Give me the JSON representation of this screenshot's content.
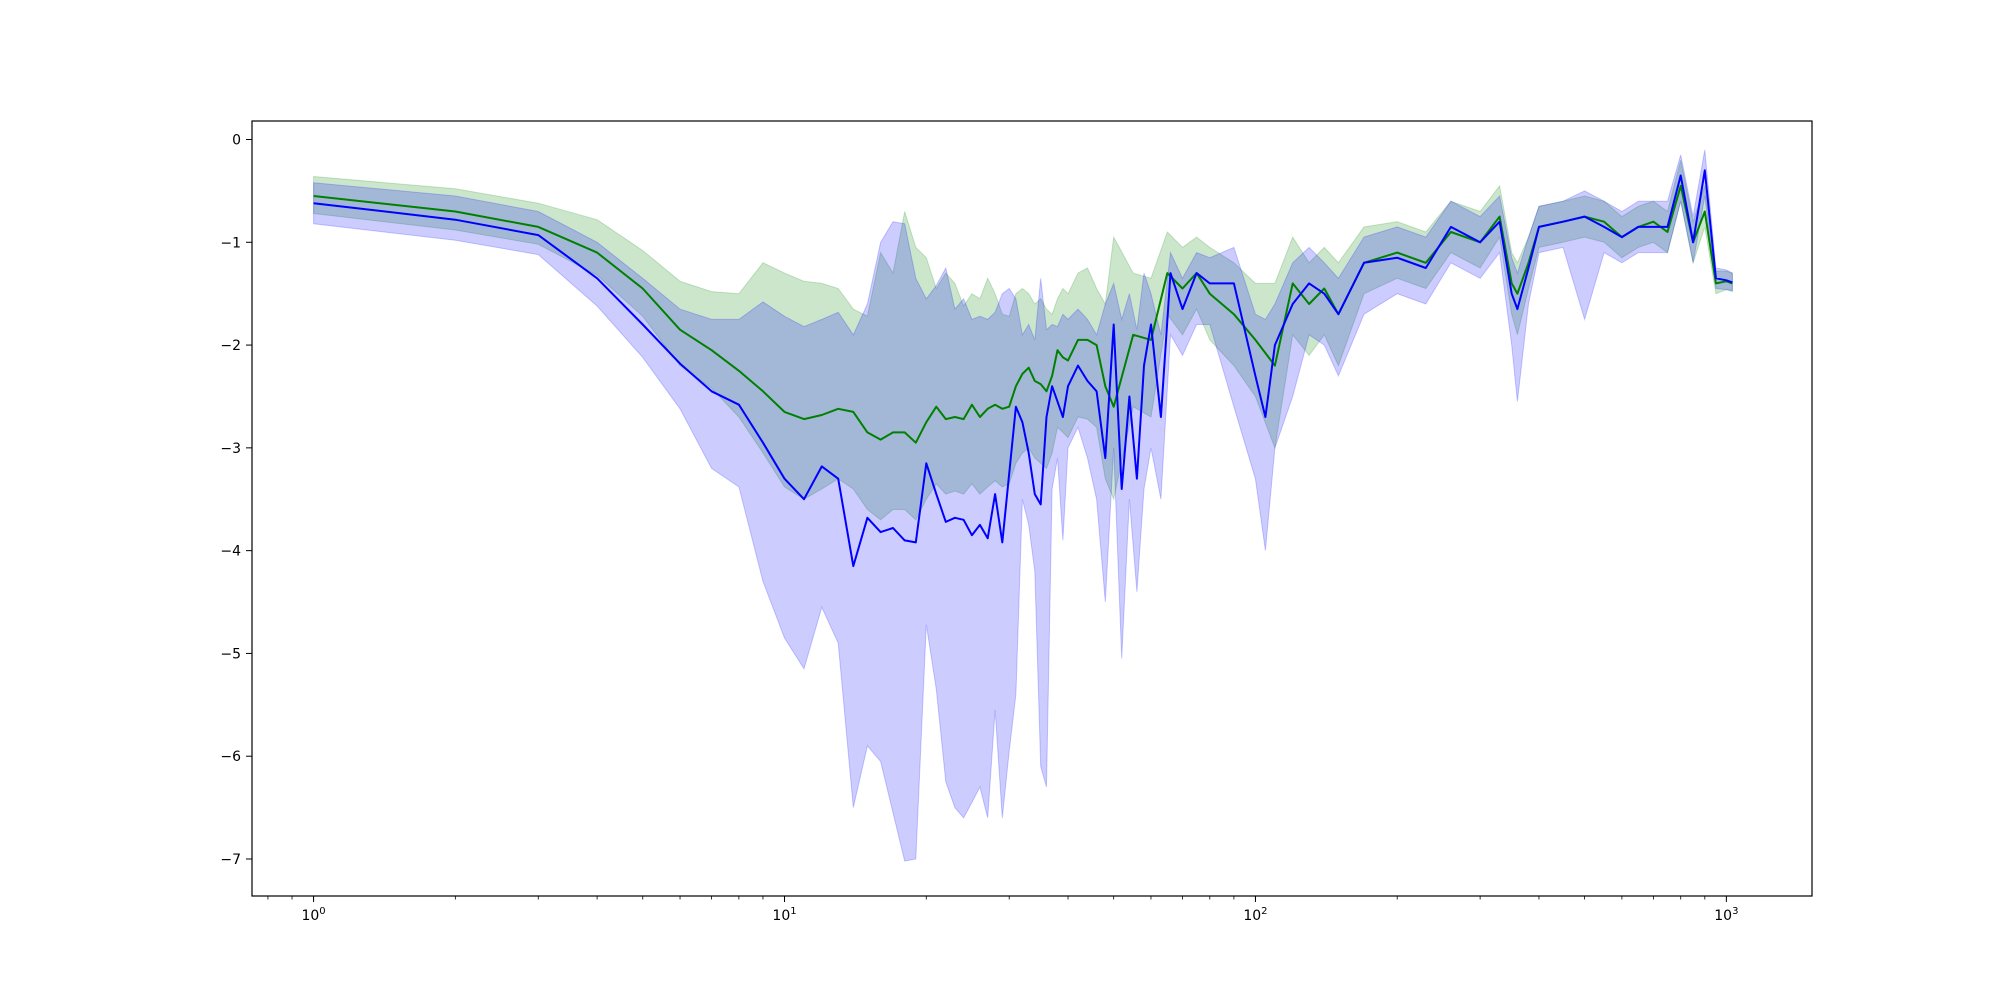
{
  "chart_data": {
    "type": "line",
    "title": "",
    "xlabel": "",
    "ylabel": "",
    "x_scale": "log",
    "xlim": [
      0.74,
      1520
    ],
    "ylim": [
      -7.36,
      0.18
    ],
    "grid": false,
    "legend": "none",
    "x_ticks": [
      {
        "value": 1,
        "base": "10",
        "exp": "0"
      },
      {
        "value": 10,
        "base": "10",
        "exp": "1"
      },
      {
        "value": 100,
        "base": "10",
        "exp": "2"
      },
      {
        "value": 1000,
        "base": "10",
        "exp": "3"
      }
    ],
    "y_ticks": [
      {
        "value": 0,
        "label": "0"
      },
      {
        "value": -1,
        "label": "−1"
      },
      {
        "value": -2,
        "label": "−2"
      },
      {
        "value": -3,
        "label": "−3"
      },
      {
        "value": -4,
        "label": "−4"
      },
      {
        "value": -5,
        "label": "−5"
      },
      {
        "value": -6,
        "label": "−6"
      },
      {
        "value": -7,
        "label": "−7"
      }
    ],
    "series": [
      {
        "color": "#008000",
        "band_color": "#008000",
        "band_opacity": 0.2,
        "x": [
          1,
          2,
          3,
          4,
          5,
          6,
          7,
          8,
          9,
          10,
          11,
          12,
          13,
          14,
          15,
          16,
          17,
          18,
          19,
          20,
          21,
          22,
          23,
          24,
          25,
          26,
          27,
          28,
          29,
          30,
          31,
          32,
          33,
          34,
          35,
          36,
          37,
          38,
          39,
          40,
          42,
          44,
          46,
          48,
          50,
          55,
          60,
          65,
          70,
          75,
          80,
          90,
          100,
          110,
          120,
          130,
          140,
          150,
          170,
          200,
          230,
          260,
          300,
          330,
          350,
          360,
          380,
          400,
          450,
          500,
          550,
          600,
          650,
          700,
          750,
          800,
          850,
          900,
          950,
          1000,
          1030
        ],
        "mean": [
          -0.55,
          -0.7,
          -0.85,
          -1.1,
          -1.45,
          -1.85,
          -2.05,
          -2.25,
          -2.45,
          -2.65,
          -2.72,
          -2.68,
          -2.62,
          -2.65,
          -2.85,
          -2.92,
          -2.85,
          -2.85,
          -2.95,
          -2.75,
          -2.6,
          -2.72,
          -2.7,
          -2.72,
          -2.58,
          -2.7,
          -2.62,
          -2.58,
          -2.62,
          -2.6,
          -2.4,
          -2.28,
          -2.22,
          -2.35,
          -2.38,
          -2.45,
          -2.3,
          -2.05,
          -2.12,
          -2.15,
          -1.95,
          -1.95,
          -2.0,
          -2.4,
          -2.6,
          -1.9,
          -1.95,
          -1.3,
          -1.45,
          -1.3,
          -1.5,
          -1.7,
          -1.95,
          -2.2,
          -1.4,
          -1.6,
          -1.45,
          -1.7,
          -1.2,
          -1.1,
          -1.2,
          -0.9,
          -1.0,
          -0.75,
          -1.4,
          -1.5,
          -1.2,
          -0.85,
          -0.8,
          -0.75,
          -0.8,
          -0.95,
          -0.85,
          -0.8,
          -0.9,
          -0.45,
          -1.0,
          -0.7,
          -1.4,
          -1.38,
          -1.4
        ],
        "lower": [
          -0.72,
          -0.88,
          -1.02,
          -1.32,
          -1.72,
          -2.2,
          -2.42,
          -2.7,
          -3.05,
          -3.38,
          -3.5,
          -3.4,
          -3.3,
          -3.4,
          -3.6,
          -3.7,
          -3.6,
          -3.6,
          -3.7,
          -3.5,
          -3.35,
          -3.45,
          -3.42,
          -3.45,
          -3.35,
          -3.45,
          -3.38,
          -3.32,
          -3.38,
          -3.35,
          -3.15,
          -3.05,
          -3.0,
          -3.1,
          -3.15,
          -3.2,
          -3.05,
          -2.8,
          -2.85,
          -2.9,
          -2.7,
          -2.72,
          -2.8,
          -3.3,
          -3.5,
          -2.6,
          -2.7,
          -1.7,
          -1.9,
          -1.65,
          -1.95,
          -2.2,
          -2.5,
          -3.0,
          -1.9,
          -2.1,
          -1.9,
          -2.2,
          -1.5,
          -1.35,
          -1.45,
          -1.1,
          -1.25,
          -0.95,
          -1.7,
          -1.9,
          -1.45,
          -1.05,
          -1.0,
          -0.95,
          -1.0,
          -1.15,
          -1.05,
          -1.0,
          -1.1,
          -0.6,
          -1.2,
          -0.85,
          -1.5,
          -1.46,
          -1.48
        ],
        "upper": [
          -0.36,
          -0.48,
          -0.62,
          -0.78,
          -1.08,
          -1.38,
          -1.48,
          -1.5,
          -1.2,
          -1.3,
          -1.38,
          -1.4,
          -1.45,
          -1.65,
          -1.72,
          -1.1,
          -1.3,
          -0.7,
          -1.05,
          -1.15,
          -1.45,
          -1.3,
          -1.4,
          -1.62,
          -1.5,
          -1.55,
          -1.35,
          -1.5,
          -1.7,
          -1.72,
          -1.5,
          -1.45,
          -1.5,
          -1.6,
          -1.55,
          -1.65,
          -1.7,
          -1.55,
          -1.45,
          -1.5,
          -1.3,
          -1.25,
          -1.45,
          -1.6,
          -0.95,
          -1.3,
          -1.35,
          -0.9,
          -1.05,
          -0.95,
          -1.05,
          -1.2,
          -1.4,
          -1.4,
          -0.95,
          -1.2,
          -1.05,
          -1.2,
          -0.85,
          -0.8,
          -0.9,
          -0.6,
          -0.7,
          -0.45,
          -1.1,
          -1.2,
          -0.95,
          -0.65,
          -0.6,
          -0.55,
          -0.6,
          -0.75,
          -0.65,
          -0.6,
          -0.7,
          -0.2,
          -0.8,
          -0.45,
          -1.28,
          -1.28,
          -1.3
        ]
      },
      {
        "color": "#0000ff",
        "band_color": "#0000ff",
        "band_opacity": 0.2,
        "x": [
          1,
          2,
          3,
          4,
          5,
          6,
          7,
          8,
          9,
          10,
          11,
          12,
          13,
          14,
          15,
          16,
          17,
          18,
          19,
          20,
          21,
          22,
          23,
          24,
          25,
          26,
          27,
          28,
          29,
          30,
          31,
          32,
          33,
          34,
          35,
          36,
          37,
          38,
          39,
          40,
          42,
          44,
          46,
          48,
          50,
          52,
          54,
          56,
          58,
          60,
          63,
          66,
          70,
          75,
          80,
          90,
          100,
          105,
          110,
          120,
          130,
          140,
          150,
          170,
          200,
          230,
          260,
          300,
          330,
          350,
          360,
          380,
          400,
          450,
          500,
          550,
          600,
          650,
          700,
          750,
          800,
          850,
          900,
          950,
          1000,
          1030
        ],
        "mean": [
          -0.62,
          -0.78,
          -0.93,
          -1.35,
          -1.8,
          -2.18,
          -2.45,
          -2.58,
          -2.95,
          -3.3,
          -3.5,
          -3.18,
          -3.3,
          -4.15,
          -3.68,
          -3.82,
          -3.78,
          -3.9,
          -3.92,
          -3.15,
          -3.45,
          -3.72,
          -3.68,
          -3.7,
          -3.85,
          -3.75,
          -3.88,
          -3.45,
          -3.92,
          -3.25,
          -2.6,
          -2.75,
          -3.05,
          -3.45,
          -3.55,
          -2.7,
          -2.4,
          -2.55,
          -2.7,
          -2.4,
          -2.2,
          -2.35,
          -2.45,
          -3.1,
          -1.8,
          -3.4,
          -2.5,
          -3.3,
          -2.2,
          -1.8,
          -2.7,
          -1.3,
          -1.65,
          -1.3,
          -1.4,
          -1.4,
          -2.3,
          -2.7,
          -2.0,
          -1.6,
          -1.4,
          -1.5,
          -1.7,
          -1.2,
          -1.15,
          -1.25,
          -0.85,
          -1.0,
          -0.8,
          -1.5,
          -1.65,
          -1.25,
          -0.85,
          -0.8,
          -0.75,
          -0.85,
          -0.95,
          -0.85,
          -0.85,
          -0.85,
          -0.35,
          -1.0,
          -0.3,
          -1.35,
          -1.37,
          -1.39
        ],
        "lower": [
          -0.82,
          -0.98,
          -1.12,
          -1.62,
          -2.12,
          -2.62,
          -3.2,
          -3.38,
          -4.3,
          -4.85,
          -5.15,
          -4.55,
          -4.9,
          -6.5,
          -5.9,
          -6.05,
          -6.55,
          -7.02,
          -7.0,
          -4.72,
          -5.35,
          -6.25,
          -6.5,
          -6.6,
          -6.45,
          -6.3,
          -6.6,
          -5.55,
          -6.6,
          -5.95,
          -5.4,
          -3.5,
          -3.75,
          -4.2,
          -6.1,
          -6.3,
          -3.4,
          -3.1,
          -3.9,
          -3.0,
          -2.8,
          -3.1,
          -3.5,
          -4.5,
          -3.0,
          -5.05,
          -3.5,
          -4.4,
          -3.4,
          -3.0,
          -3.5,
          -1.9,
          -2.1,
          -1.8,
          -1.8,
          -2.6,
          -3.3,
          -4.0,
          -3.0,
          -2.5,
          -1.9,
          -2.0,
          -2.3,
          -1.7,
          -1.5,
          -1.6,
          -1.2,
          -1.35,
          -1.1,
          -2.0,
          -2.55,
          -1.6,
          -1.1,
          -1.05,
          -1.75,
          -1.1,
          -1.2,
          -1.1,
          -1.1,
          -1.1,
          -0.6,
          -1.2,
          -0.55,
          -1.45,
          -1.46,
          -1.47
        ],
        "upper": [
          -0.42,
          -0.55,
          -0.7,
          -1.0,
          -1.35,
          -1.65,
          -1.75,
          -1.75,
          -1.58,
          -1.72,
          -1.82,
          -1.75,
          -1.68,
          -1.9,
          -1.6,
          -1.0,
          -0.8,
          -0.82,
          -1.35,
          -1.55,
          -1.42,
          -1.25,
          -1.65,
          -1.55,
          -1.75,
          -1.72,
          -1.75,
          -1.68,
          -1.5,
          -1.45,
          -1.55,
          -1.9,
          -1.8,
          -1.95,
          -1.35,
          -1.85,
          -1.8,
          -1.82,
          -1.7,
          -1.75,
          -1.65,
          -1.75,
          -1.9,
          -1.6,
          -1.4,
          -1.75,
          -1.5,
          -1.85,
          -1.3,
          -1.5,
          -1.9,
          -1.1,
          -1.35,
          -1.1,
          -1.15,
          -1.05,
          -1.7,
          -1.75,
          -1.6,
          -1.2,
          -1.05,
          -1.2,
          -1.35,
          -0.95,
          -0.85,
          -0.95,
          -0.6,
          -0.75,
          -0.55,
          -1.15,
          -1.3,
          -0.95,
          -0.65,
          -0.6,
          -0.5,
          -0.6,
          -0.7,
          -0.6,
          -0.6,
          -0.6,
          -0.15,
          -0.75,
          -0.1,
          -1.25,
          -1.27,
          -1.3
        ]
      }
    ]
  }
}
